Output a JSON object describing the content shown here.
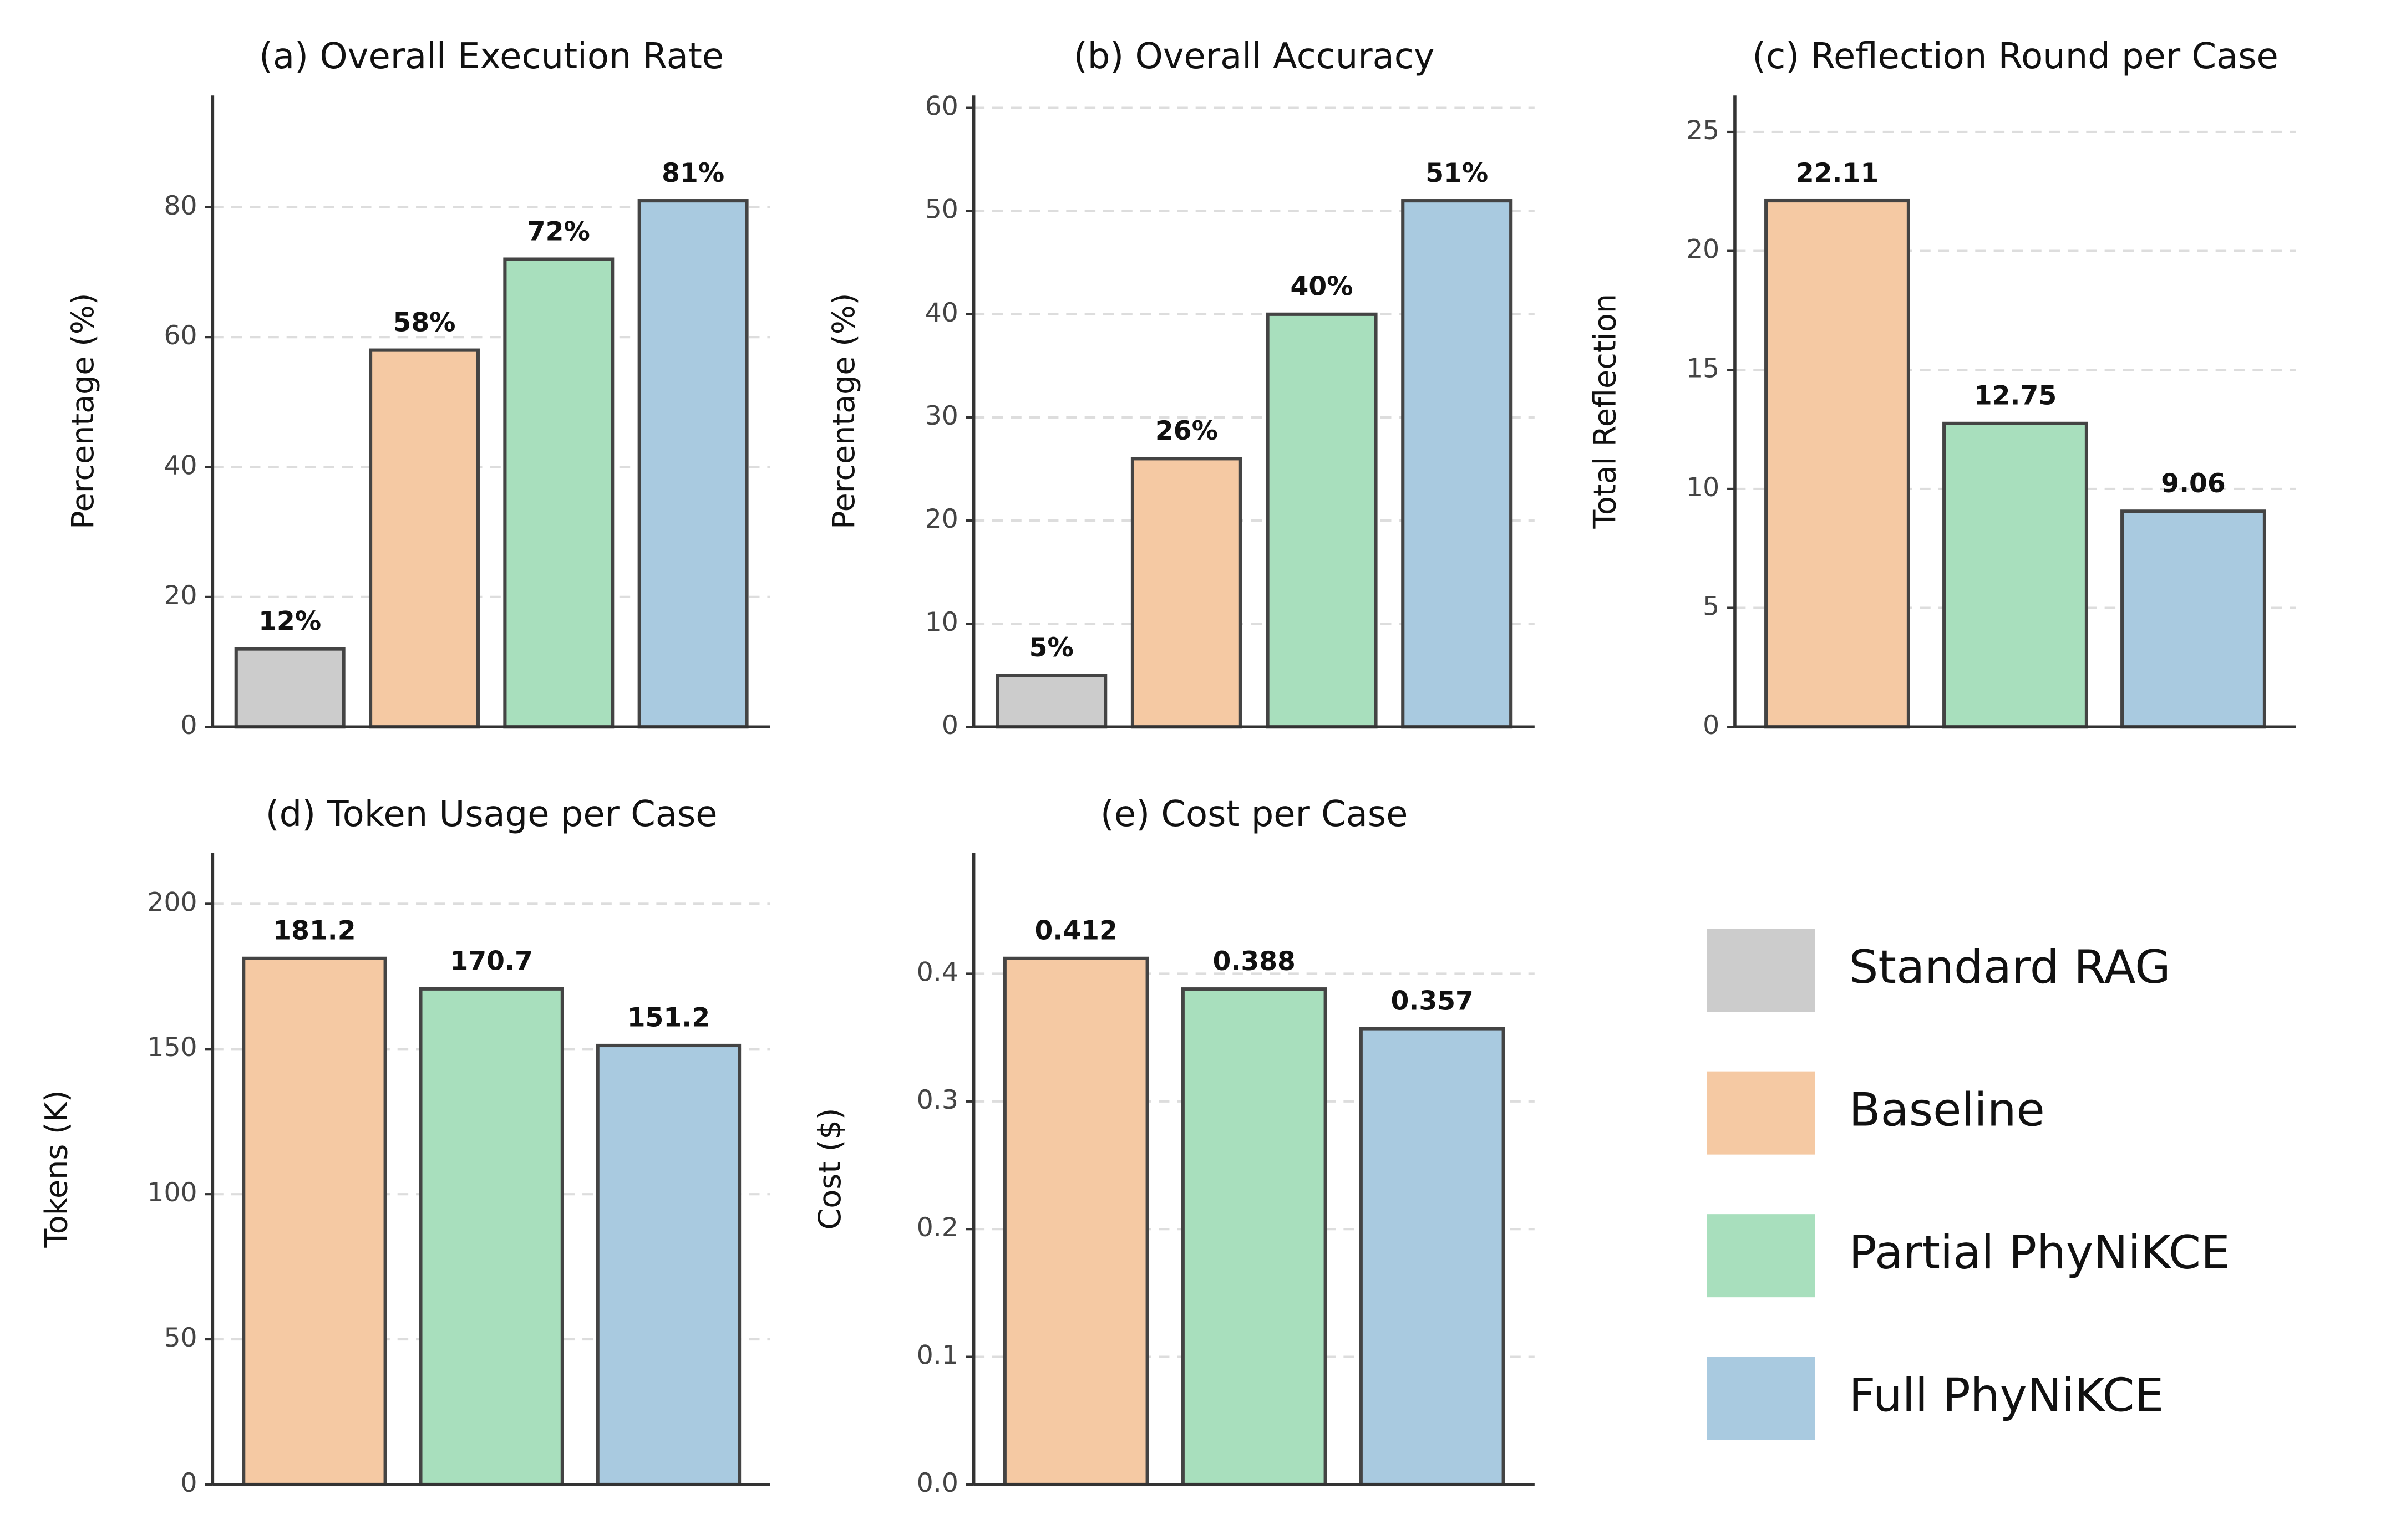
{
  "chart_data": [
    {
      "type": "bar",
      "title": "(a) Overall Execution Rate",
      "y_label": "Percentage (%)",
      "values": [
        12,
        58,
        72,
        81
      ],
      "value_labels": [
        "12%",
        "58%",
        "72%",
        "81%"
      ],
      "colors": [
        "#cccccc",
        "#f5c9a3",
        "#a8dfbd",
        "#a9cae0"
      ],
      "ylim": [
        0,
        97.2
      ],
      "yticks": [
        0,
        20,
        40,
        60,
        80
      ],
      "grid": true
    },
    {
      "type": "bar",
      "title": "(b) Overall Accuracy",
      "y_label": "Percentage (%)",
      "values": [
        5,
        26,
        40,
        51
      ],
      "value_labels": [
        "5%",
        "26%",
        "40%",
        "51%"
      ],
      "colors": [
        "#cccccc",
        "#f5c9a3",
        "#a8dfbd",
        "#a9cae0"
      ],
      "ylim": [
        0,
        61.2
      ],
      "yticks": [
        0,
        10,
        20,
        30,
        40,
        50,
        60
      ],
      "grid": true
    },
    {
      "type": "bar",
      "title": "(c) Reflection Round per Case",
      "y_label": "Total Reflection",
      "values": [
        22.11,
        12.75,
        9.06
      ],
      "colors": [
        "#f5c9a3",
        "#a8dfbd",
        "#a9cae0"
      ],
      "ylim": [
        0,
        26.53
      ],
      "yticks": [
        0,
        5,
        10,
        15,
        20,
        25
      ],
      "grid": true
    },
    {
      "type": "bar",
      "title": "(d) Token Usage per Case",
      "y_label": "Tokens (K)",
      "values": [
        181.2,
        170.7,
        151.2
      ],
      "colors": [
        "#f5c9a3",
        "#a8dfbd",
        "#a9cae0"
      ],
      "ylim": [
        0,
        217.44
      ],
      "yticks": [
        0,
        50,
        100,
        150,
        200
      ],
      "grid": true
    },
    {
      "type": "bar",
      "title": "(e) Cost per Case",
      "y_label": "Cost ($)",
      "values": [
        0.412,
        0.388,
        0.357
      ],
      "colors": [
        "#f5c9a3",
        "#a8dfbd",
        "#a9cae0"
      ],
      "ylim": [
        0,
        0.4944
      ],
      "yticks": [
        {
          "value": 0,
          "label": "0.0"
        },
        0.1,
        0.2,
        0.3,
        0.4
      ],
      "grid": true
    }
  ],
  "legend": {
    "items": [
      {
        "name": "Standard RAG",
        "color": "#cccccc"
      },
      {
        "name": "Baseline",
        "color": "#f5c9a3"
      },
      {
        "name": "Partial PhyNiKCE",
        "color": "#a8dfbd"
      },
      {
        "name": "Full PhyNiKCE",
        "color": "#a9cae0"
      }
    ]
  }
}
